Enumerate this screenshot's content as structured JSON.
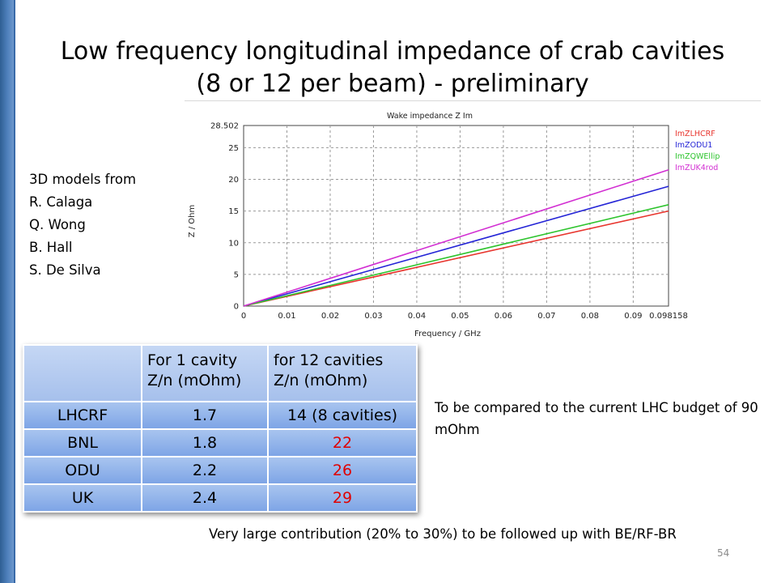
{
  "slide": {
    "title_line1": "Low frequency longitudinal impedance of crab cavities",
    "title_line2": "(8 or 12 per beam) - preliminary",
    "authors": [
      "3D models from",
      "R. Calaga",
      "Q. Wong",
      "B. Hall",
      "S. De Silva"
    ],
    "note": "To be compared to the current LHC budget of 90 mOhm",
    "footer": "Very large contribution (20% to 30%) to be followed up with BE/RF-BR",
    "page_number": "54",
    "accent_color": "#4f81bd"
  },
  "table": {
    "header": [
      "",
      "For 1 cavity Z/n (mOhm)",
      "for 12 cavities Z/n (mOhm)"
    ],
    "rows": [
      {
        "name": "LHCRF",
        "one": "1.7",
        "twelve": "14  (8 cavities)",
        "red": false
      },
      {
        "name": "BNL",
        "one": "1.8",
        "twelve": "22",
        "red": true
      },
      {
        "name": "ODU",
        "one": "2.2",
        "twelve": "26",
        "red": true
      },
      {
        "name": "UK",
        "one": "2.4",
        "twelve": "29",
        "red": true
      }
    ]
  },
  "chart_data": {
    "type": "line",
    "title": "Wake impedance Z Im",
    "xlabel": "Frequency / GHz",
    "ylabel": "Z / Ohm",
    "xlim": [
      0,
      0.098158
    ],
    "ylim": [
      0,
      28.502
    ],
    "xticks": [
      "0",
      "0.01",
      "0.02",
      "0.03",
      "0.04",
      "0.05",
      "0.06",
      "0.07",
      "0.08",
      "0.09",
      "0.098158"
    ],
    "yticks": [
      "0",
      "5",
      "10",
      "15",
      "20",
      "25",
      "28.502"
    ],
    "grid": true,
    "legend_position": "top-right",
    "series": [
      {
        "name": "ImZLHCRF",
        "color": "#e8352e",
        "x": [
          0,
          0.098158
        ],
        "y": [
          0,
          15.0
        ]
      },
      {
        "name": "ImZODU1",
        "color": "#2424d6",
        "x": [
          0,
          0.098158
        ],
        "y": [
          0,
          18.9
        ]
      },
      {
        "name": "ImZQWEllip",
        "color": "#2ec42e",
        "x": [
          0,
          0.098158
        ],
        "y": [
          0,
          16.0
        ]
      },
      {
        "name": "ImZUK4rod",
        "color": "#d22ed2",
        "x": [
          0,
          0.098158
        ],
        "y": [
          0,
          21.5
        ]
      }
    ]
  }
}
